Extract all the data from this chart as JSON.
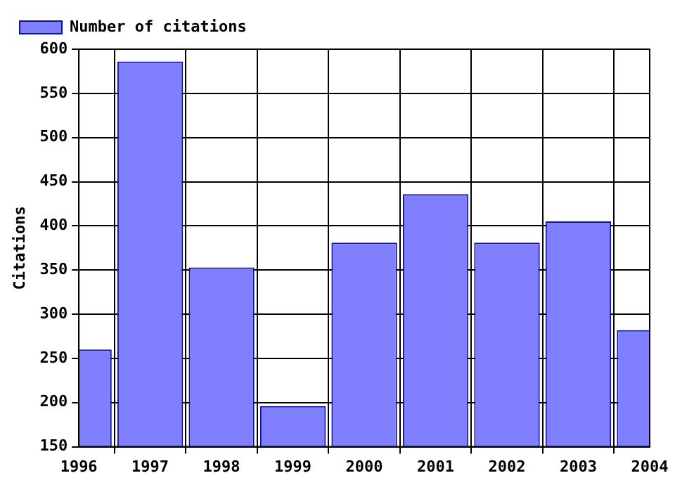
{
  "chart_data": {
    "type": "bar",
    "ylabel": "Citations",
    "x": [
      1996,
      1997,
      1998,
      1999,
      2000,
      2001,
      2002,
      2003,
      2004
    ],
    "series": [
      {
        "name": "Number of citations",
        "color": "#8080ff",
        "values": [
          260,
          586,
          353,
          196,
          381,
          436,
          381,
          405,
          282
        ]
      }
    ],
    "xlim": [
      1996,
      2004
    ],
    "xticks": [
      1996,
      1997,
      1998,
      1999,
      2000,
      2001,
      2002,
      2003,
      2004
    ],
    "ylim": [
      150,
      600
    ],
    "yticks": [
      150,
      200,
      250,
      300,
      350,
      400,
      450,
      500,
      550,
      600
    ],
    "grid": true,
    "legend": "top left"
  }
}
